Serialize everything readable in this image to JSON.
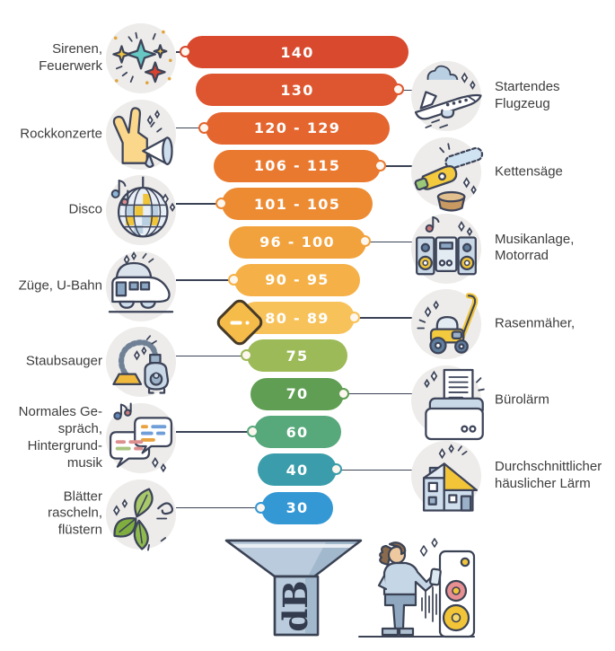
{
  "infographic": {
    "unit_label": "dB",
    "levels": [
      {
        "value": "140",
        "color": "#d8492d",
        "side": "left"
      },
      {
        "value": "130",
        "color": "#de562f",
        "side": "right"
      },
      {
        "value": "120 - 129",
        "color": "#e4652e",
        "side": "left"
      },
      {
        "value": "106 - 115",
        "color": "#ea7930",
        "side": "right"
      },
      {
        "value": "101 - 105",
        "color": "#ed8b33",
        "side": "left"
      },
      {
        "value": "96 - 100",
        "color": "#f2a23c",
        "side": "right"
      },
      {
        "value": "90 - 95",
        "color": "#f5b148",
        "side": "left"
      },
      {
        "value": "80 - 89",
        "color": "#f8c25a",
        "side": "right",
        "warning": true
      },
      {
        "value": "75",
        "color": "#9cba57",
        "side": "left"
      },
      {
        "value": "70",
        "color": "#5f9e53",
        "side": "right"
      },
      {
        "value": "60",
        "color": "#57a87b",
        "side": "left"
      },
      {
        "value": "40",
        "color": "#3b9dab",
        "side": "right"
      },
      {
        "value": "30",
        "color": "#3498d5",
        "side": "left"
      }
    ],
    "left_items": [
      {
        "label": "Sirenen,\nFeuerwerk",
        "icon": "fireworks-icon"
      },
      {
        "label": "Rockkonzerte",
        "icon": "rock-concert-icon"
      },
      {
        "label": "Disco",
        "icon": "disco-ball-icon"
      },
      {
        "label": "Züge, U-Bahn",
        "icon": "train-icon"
      },
      {
        "label": "Staubsauger",
        "icon": "vacuum-cleaner-icon"
      },
      {
        "label": "Normales Ge-\nspräch,\nHintergrund-\nmusik",
        "icon": "speech-bubbles-icon"
      },
      {
        "label": "Blätter\nrascheln,\nflüstern",
        "icon": "leaves-icon"
      }
    ],
    "right_items": [
      {
        "label": "Startendes\nFlugzeug",
        "icon": "airplane-icon"
      },
      {
        "label": "Kettensäge",
        "icon": "chainsaw-icon"
      },
      {
        "label": "Musikanlage,\nMotorrad",
        "icon": "stereo-system-icon"
      },
      {
        "label": "Rasenmäher,",
        "icon": "lawn-mower-icon"
      },
      {
        "label": "Bürolärm",
        "icon": "printer-icon"
      },
      {
        "label": "Durchschnittlicher\nhäuslicher Lärm",
        "icon": "house-icon"
      }
    ]
  }
}
